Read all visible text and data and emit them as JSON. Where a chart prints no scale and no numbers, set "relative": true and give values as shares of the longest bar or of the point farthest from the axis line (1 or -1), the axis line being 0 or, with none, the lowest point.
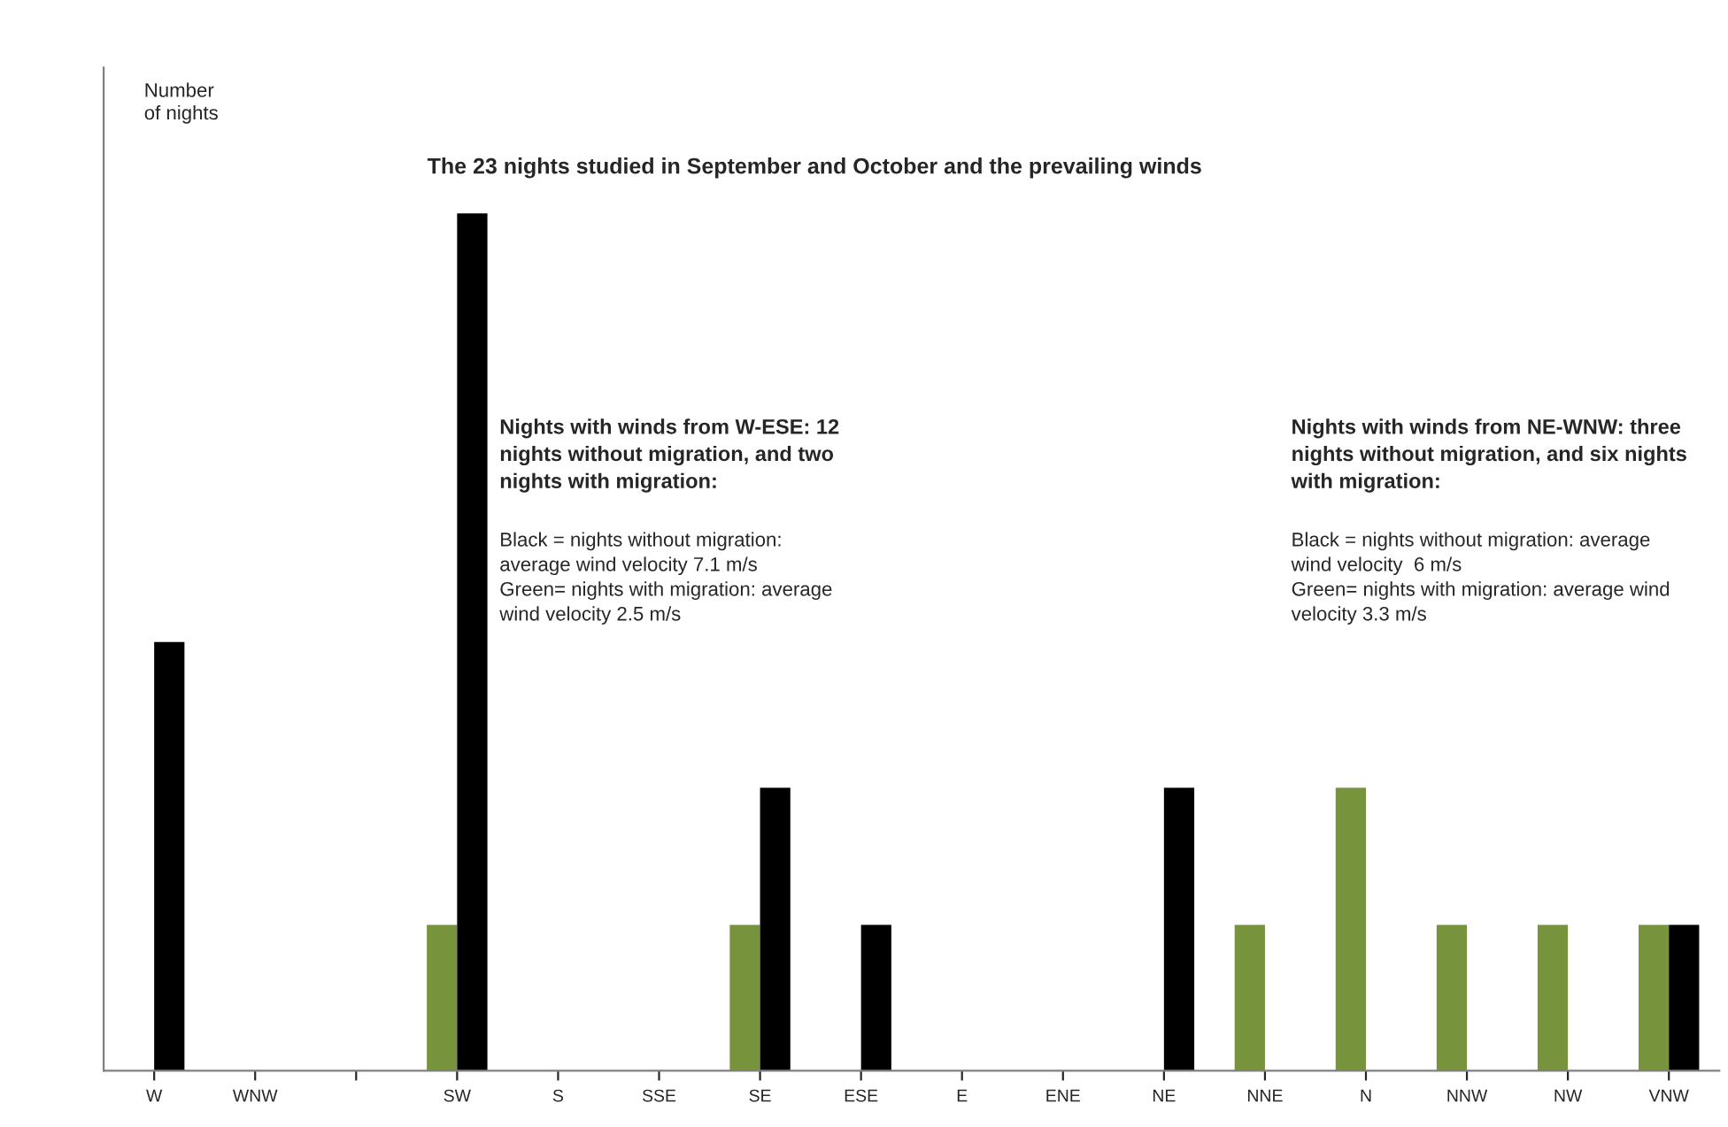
{
  "chart_data": {
    "type": "bar",
    "title": "The 23 nights studied in September and October and the prevailing winds",
    "ylabel": "Number\nof nights",
    "relative": true,
    "legend": false,
    "grid": false,
    "categories": [
      "W",
      "WNW",
      null,
      "SW",
      "S",
      "SSE",
      "SE",
      "ESE",
      "E",
      "ENE",
      "NE",
      "NNE",
      "N",
      "NNW",
      "NW",
      "VNW"
    ],
    "series": [
      {
        "color": "#77933c",
        "values": [
          0,
          0,
          0,
          0.17,
          0,
          0,
          0.17,
          0,
          0,
          0,
          0,
          0.17,
          0.33,
          0.17,
          0.17,
          0.17
        ]
      },
      {
        "color": "#000000",
        "values": [
          0.5,
          0,
          0,
          1,
          0,
          0,
          0.33,
          0.17,
          0,
          0,
          0.33,
          0,
          0,
          0,
          0,
          0.17
        ]
      }
    ],
    "annotations": [
      "Nights with winds from W-ESE: 12\nnights without migration, and two\nnights with migration:",
      "Black = nights without migration:\naverage wind velocity 7.1 m/s\nGreen= nights with migration: average\nwind velocity 2.5 m/s",
      "Nights with winds from NE-WNW: three\nnights without migration, and six nights\nwith migration:",
      "Black = nights without migration: average\nwind velocity  6 m/s\nGreen= nights with migration: average wind\nvelocity 3.3 m/s"
    ]
  }
}
